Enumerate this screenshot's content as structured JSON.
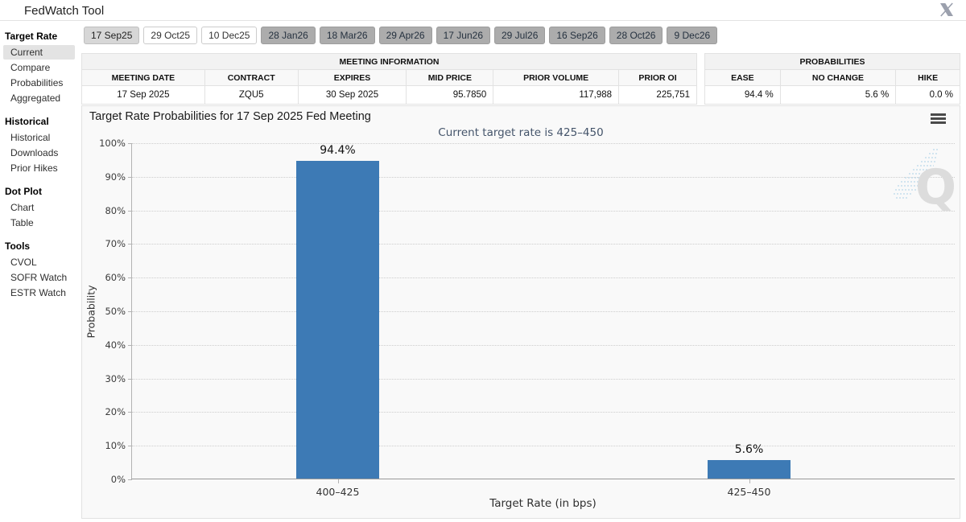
{
  "app": {
    "title": "FedWatch Tool",
    "close_icon": "x-logo"
  },
  "meeting_tabs": [
    {
      "label": "17 Sep25",
      "variant": "selected"
    },
    {
      "label": "29 Oct25",
      "variant": "white"
    },
    {
      "label": "10 Dec25",
      "variant": "white"
    },
    {
      "label": "28 Jan26",
      "variant": "gray"
    },
    {
      "label": "18 Mar26",
      "variant": "gray"
    },
    {
      "label": "29 Apr26",
      "variant": "gray"
    },
    {
      "label": "17 Jun26",
      "variant": "gray"
    },
    {
      "label": "29 Jul26",
      "variant": "gray"
    },
    {
      "label": "16 Sep26",
      "variant": "gray"
    },
    {
      "label": "28 Oct26",
      "variant": "gray"
    },
    {
      "label": "9 Dec26",
      "variant": "gray"
    }
  ],
  "sidebar": {
    "sections": [
      {
        "header": "Target Rate",
        "items": [
          {
            "label": "Current",
            "selected": true
          },
          {
            "label": "Compare",
            "selected": false
          },
          {
            "label": "Probabilities",
            "selected": false
          },
          {
            "label": "Aggregated",
            "selected": false
          }
        ]
      },
      {
        "header": "Historical",
        "items": [
          {
            "label": "Historical",
            "selected": false
          },
          {
            "label": "Downloads",
            "selected": false
          },
          {
            "label": "Prior Hikes",
            "selected": false
          }
        ]
      },
      {
        "header": "Dot Plot",
        "items": [
          {
            "label": "Chart",
            "selected": false
          },
          {
            "label": "Table",
            "selected": false
          }
        ]
      },
      {
        "header": "Tools",
        "items": [
          {
            "label": "CVOL",
            "selected": false
          },
          {
            "label": "SOFR Watch",
            "selected": false
          },
          {
            "label": "ESTR Watch",
            "selected": false
          }
        ]
      }
    ]
  },
  "meeting_information": {
    "title": "MEETING INFORMATION",
    "columns": [
      "MEETING DATE",
      "CONTRACT",
      "EXPIRES",
      "MID PRICE",
      "PRIOR VOLUME",
      "PRIOR OI"
    ],
    "values": [
      "17 Sep 2025",
      "ZQU5",
      "30 Sep 2025",
      "95.7850",
      "117,988",
      "225,751"
    ]
  },
  "probabilities": {
    "title": "PROBABILITIES",
    "columns": [
      "EASE",
      "NO CHANGE",
      "HIKE"
    ],
    "values": [
      "94.4 %",
      "5.6 %",
      "0.0 %"
    ]
  },
  "chart_data": {
    "type": "bar",
    "title": "Target Rate Probabilities for 17 Sep 2025 Fed Meeting",
    "subtitle": "Current target rate is 425–450",
    "categories": [
      "400–425",
      "425–450"
    ],
    "values": [
      94.4,
      5.6
    ],
    "bar_labels": [
      "94.4%",
      "5.6%"
    ],
    "xlabel": "Target Rate (in bps)",
    "ylabel": "Probability",
    "ylim": [
      0,
      100
    ],
    "yticks": [
      "0%",
      "10%",
      "20%",
      "30%",
      "40%",
      "50%",
      "60%",
      "70%",
      "80%",
      "90%",
      "100%"
    ],
    "grid": "dotted-horizontal",
    "legend": "none",
    "bar_color": "#3d7ab5"
  },
  "watermark": "Q"
}
